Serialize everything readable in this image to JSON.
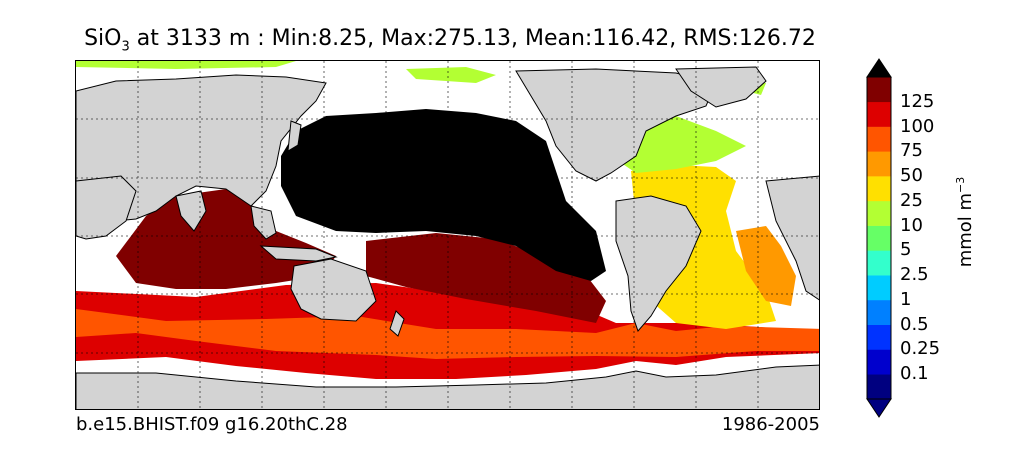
{
  "title": {
    "species": "SiO",
    "subscript": "3",
    "rest": " at 3133 m : Min:8.25, Max:275.13, Mean:116.42, RMS:126.72"
  },
  "footer": {
    "case": "b.e15.BHIST.f09 g16.20thC.28",
    "years": "1986-2005"
  },
  "colorbar": {
    "units_base": "mmol m",
    "units_exponent": "−3",
    "ticks": [
      "0.1",
      "0.25",
      "0.5",
      "1",
      "2.5",
      "5",
      "10",
      "25",
      "50",
      "75",
      "100",
      "125"
    ],
    "bins": [
      {
        "color": "#000080",
        "range": "<0.1"
      },
      {
        "color": "#0000cd",
        "range": "0.1-0.25"
      },
      {
        "color": "#0033ff",
        "range": "0.25-0.5"
      },
      {
        "color": "#0080ff",
        "range": "0.5-1"
      },
      {
        "color": "#00ccff",
        "range": "1-2.5"
      },
      {
        "color": "#33ffcc",
        "range": "2.5-5"
      },
      {
        "color": "#66ff66",
        "range": "5-10"
      },
      {
        "color": "#b3ff33",
        "range": "10-25"
      },
      {
        "color": "#ffe000",
        "range": "25-50"
      },
      {
        "color": "#ff9900",
        "range": "50-75"
      },
      {
        "color": "#ff5500",
        "range": "75-100"
      },
      {
        "color": "#dd0000",
        "range": "100-125"
      },
      {
        "color": "#800000",
        "range": ">125"
      }
    ],
    "under_color": "#000080",
    "over_color": "#000000"
  },
  "map": {
    "land_color": "#d3d3d3",
    "no_data_color": "#ffffff",
    "saturated_color": "#000000",
    "projection": "global cylindrical, 30E center",
    "gridlines": "dotted"
  }
}
